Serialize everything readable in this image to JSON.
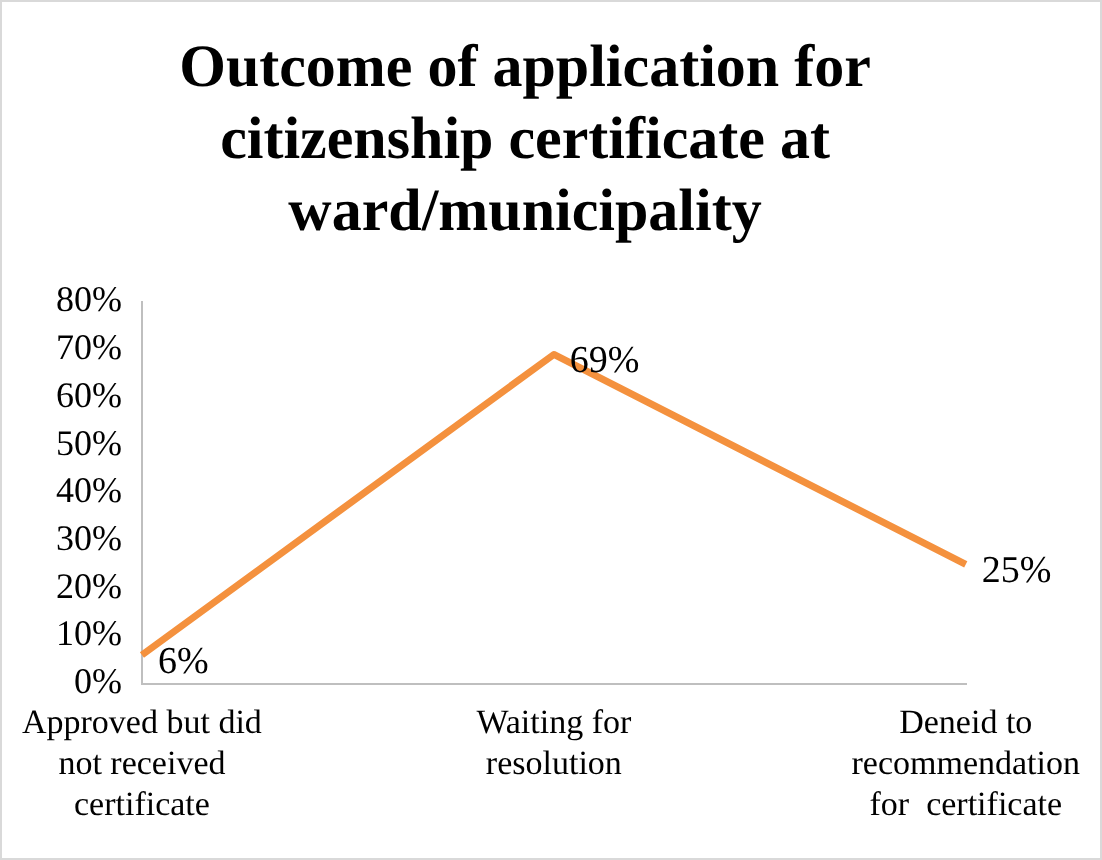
{
  "chart_data": {
    "type": "line",
    "title": "Outcome of application for citizenship certificate at ward/municipality",
    "categories": [
      "Approved but did not received certificate",
      "Waiting for resolution",
      "Deneid to recommendation for  certificate"
    ],
    "series": [
      {
        "color": "#f4913e",
        "values": [
          6,
          69,
          25
        ],
        "value_labels": [
          "6%",
          "69%",
          "25%"
        ]
      }
    ],
    "ylim": [
      0,
      80
    ],
    "yticks": [
      {
        "value": 0,
        "label": "0%"
      },
      {
        "value": 10,
        "label": "10%"
      },
      {
        "value": 20,
        "label": "20%"
      },
      {
        "value": 30,
        "label": "30%"
      },
      {
        "value": 40,
        "label": "40%"
      },
      {
        "value": 50,
        "label": "50%"
      },
      {
        "value": 60,
        "label": "60%"
      },
      {
        "value": 70,
        "label": "70%"
      },
      {
        "value": 80,
        "label": "80%"
      }
    ],
    "grid": false,
    "legend": false,
    "marker": "none",
    "line_style": "solid"
  }
}
